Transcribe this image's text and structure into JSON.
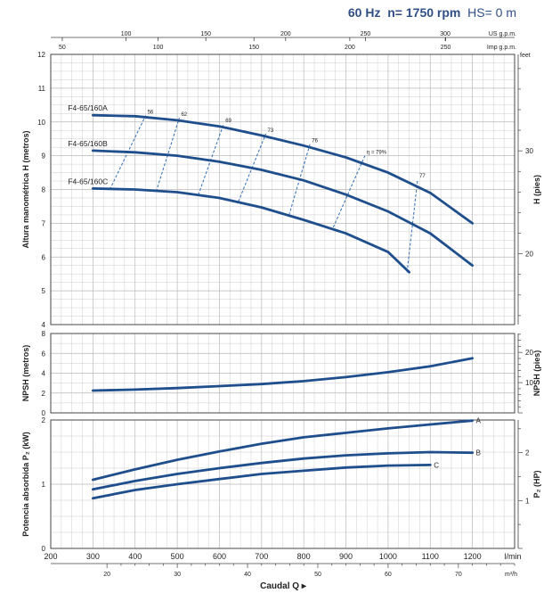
{
  "header": {
    "freq": "60 Hz",
    "speed": "n= 1750 rpm",
    "hs": "HS= 0 m"
  },
  "colors": {
    "curve": "#1f4e8c",
    "grid": "#b8b8b8",
    "frame": "#444444",
    "eff": "#2f6db5",
    "text": "#222222"
  },
  "top_axes": {
    "usgpm_label": "US g.p.m.",
    "impgpm_label": "Imp g.p.m.",
    "usgpm_ticks": [
      "100",
      "150",
      "200",
      "250",
      "300"
    ],
    "impgpm_ticks": [
      "50",
      "100",
      "150",
      "200",
      "250"
    ]
  },
  "bottom_axes": {
    "lmin_label": "l/min",
    "m3h_label": "m³/h",
    "xlabel": "Caudal Q ▸",
    "lmin_ticks": [
      "200",
      "300",
      "400",
      "500",
      "600",
      "700",
      "800",
      "900",
      "1000",
      "1100",
      "1200"
    ],
    "m3h_ticks": [
      "20",
      "30",
      "40",
      "50",
      "60",
      "70"
    ]
  },
  "chart_data": [
    {
      "type": "line",
      "ylabel": "Altura manométrica H  (metros)",
      "ylabel_right": "H  (pies)",
      "right_unit": "feet",
      "ylim": [
        4,
        12
      ],
      "xlim": [
        200,
        1300
      ],
      "yticks": [
        "4",
        "5",
        "6",
        "7",
        "8",
        "9",
        "10",
        "11",
        "12"
      ],
      "right_ticks": [
        "20",
        "30"
      ],
      "series": [
        {
          "name": "F4-65/160A",
          "x": [
            300,
            400,
            500,
            600,
            700,
            800,
            900,
            1000,
            1100,
            1200
          ],
          "y": [
            10.2,
            10.17,
            10.05,
            9.87,
            9.6,
            9.3,
            8.95,
            8.5,
            7.9,
            7.0
          ]
        },
        {
          "name": "F4-65/160B",
          "x": [
            300,
            400,
            500,
            600,
            700,
            800,
            900,
            1000,
            1100,
            1200
          ],
          "y": [
            9.15,
            9.1,
            9.0,
            8.82,
            8.58,
            8.27,
            7.85,
            7.35,
            6.7,
            5.75
          ]
        },
        {
          "name": "F4-65/160C",
          "x": [
            300,
            400,
            500,
            600,
            700,
            800,
            900,
            1000,
            1050
          ],
          "y": [
            8.03,
            8.0,
            7.92,
            7.75,
            7.47,
            7.1,
            6.7,
            6.15,
            5.55
          ]
        }
      ],
      "efficiency_lines": [
        {
          "label": "56",
          "x": [
            340,
            425
          ],
          "y": [
            8.0,
            10.19
          ]
        },
        {
          "label": "62",
          "x": [
            450,
            505
          ],
          "y": [
            7.94,
            10.12
          ]
        },
        {
          "label": "69",
          "x": [
            550,
            610
          ],
          "y": [
            7.84,
            9.94
          ]
        },
        {
          "label": "73",
          "x": [
            645,
            710
          ],
          "y": [
            7.64,
            9.65
          ]
        },
        {
          "label": "76",
          "x": [
            765,
            815
          ],
          "y": [
            7.24,
            9.35
          ]
        },
        {
          "label": "η = 79%",
          "x": [
            870,
            945
          ],
          "y": [
            6.88,
            9.0
          ]
        },
        {
          "label": "77",
          "x": [
            1045,
            1070
          ],
          "y": [
            5.55,
            8.3
          ]
        }
      ]
    },
    {
      "type": "line",
      "ylabel": "NPSH  (metros)",
      "ylabel_right": "NPSH  (pies)",
      "ylim": [
        0,
        8
      ],
      "xlim": [
        200,
        1300
      ],
      "yticks": [
        "0",
        "2",
        "4",
        "6",
        "8"
      ],
      "right_ticks": [
        "10",
        "20"
      ],
      "series": [
        {
          "name": "NPSH",
          "x": [
            300,
            400,
            500,
            600,
            700,
            800,
            900,
            1000,
            1100,
            1200
          ],
          "y": [
            2.25,
            2.35,
            2.5,
            2.7,
            2.9,
            3.2,
            3.6,
            4.1,
            4.7,
            5.5
          ]
        }
      ]
    },
    {
      "type": "line",
      "ylabel": "Potencia absorbida P₂ (kW)",
      "ylabel_right": "P₂  (HP)",
      "ylim": [
        0,
        2
      ],
      "xlim": [
        200,
        1300
      ],
      "yticks": [
        "0",
        "1",
        "2"
      ],
      "right_ticks": [
        "1",
        "2"
      ],
      "series": [
        {
          "name": "A",
          "x": [
            300,
            400,
            500,
            600,
            700,
            800,
            900,
            1000,
            1100,
            1200
          ],
          "y": [
            1.07,
            1.23,
            1.38,
            1.51,
            1.63,
            1.73,
            1.8,
            1.87,
            1.93,
            1.99
          ]
        },
        {
          "name": "B",
          "x": [
            300,
            400,
            500,
            600,
            700,
            800,
            900,
            1000,
            1100,
            1200
          ],
          "y": [
            0.92,
            1.05,
            1.16,
            1.25,
            1.33,
            1.4,
            1.45,
            1.48,
            1.5,
            1.49
          ]
        },
        {
          "name": "C",
          "x": [
            300,
            400,
            500,
            600,
            700,
            800,
            900,
            1000,
            1100
          ],
          "y": [
            0.78,
            0.91,
            1.0,
            1.08,
            1.16,
            1.21,
            1.26,
            1.29,
            1.3
          ]
        }
      ]
    }
  ]
}
